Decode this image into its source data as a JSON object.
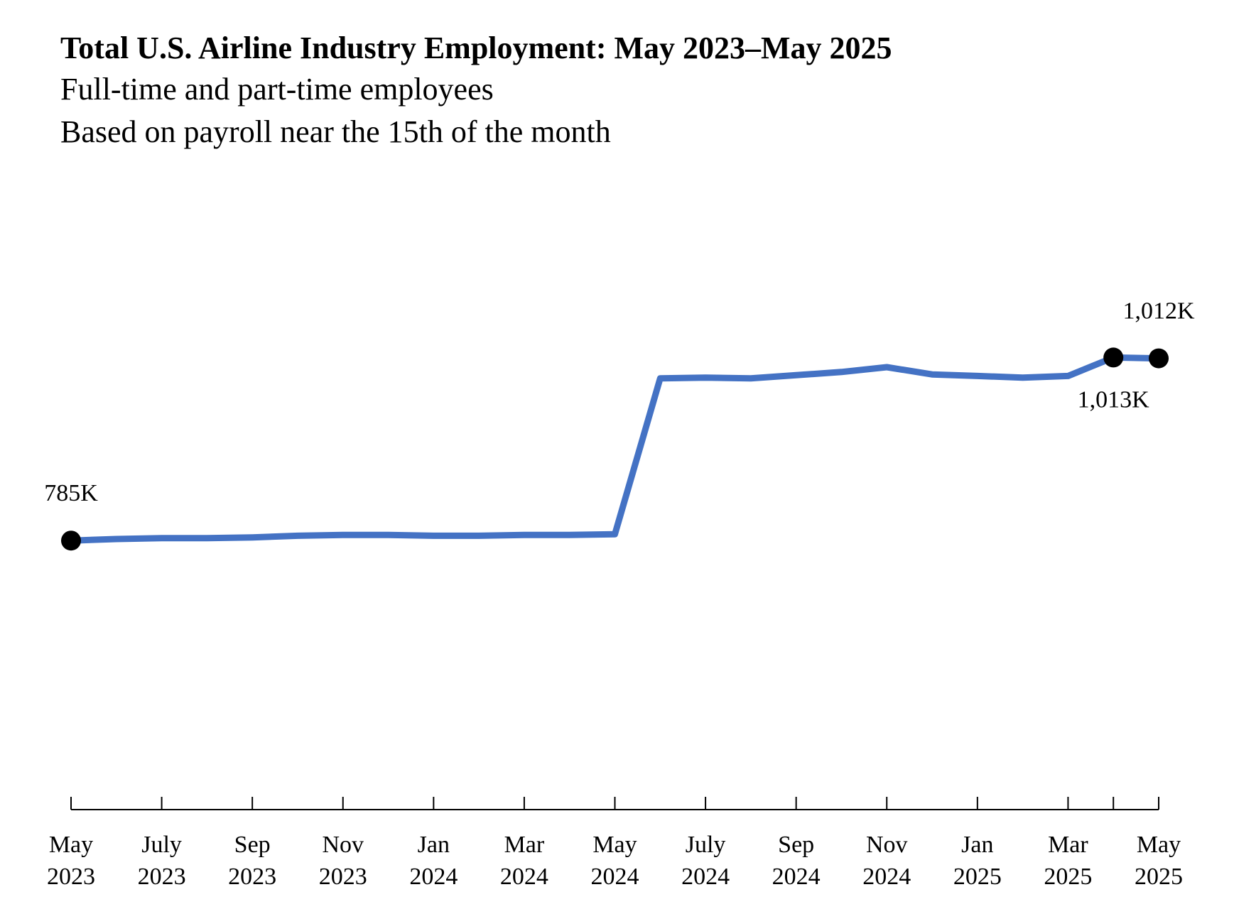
{
  "header": {
    "title": "Total U.S. Airline Industry Employment: May 2023–May 2025",
    "subtitle_1": "Full-time and part-time employees",
    "subtitle_2": "Based on payroll near the 15th of the month"
  },
  "chart_data": {
    "type": "line",
    "title": "Total U.S. Airline Industry Employment: May 2023–May 2025",
    "subtitle": [
      "Full-time and part-time employees",
      "Based on payroll near the 15th of the month"
    ],
    "xlabel": "",
    "ylabel": "",
    "x": [
      "May 2023",
      "Jun 2023",
      "Jul 2023",
      "Aug 2023",
      "Sep 2023",
      "Oct 2023",
      "Nov 2023",
      "Dec 2023",
      "Jan 2024",
      "Feb 2024",
      "Mar 2024",
      "Apr 2024",
      "May 2024",
      "Jun 2024",
      "Jul 2024",
      "Aug 2024",
      "Sep 2024",
      "Oct 2024",
      "Nov 2024",
      "Dec 2024",
      "Jan 2025",
      "Feb 2025",
      "Mar 2025",
      "Apr 2025",
      "May 2025"
    ],
    "x_tick_labels": [
      {
        "month": "May",
        "year": "2023"
      },
      {
        "month": "July",
        "year": "2023"
      },
      {
        "month": "Sep",
        "year": "2023"
      },
      {
        "month": "Nov",
        "year": "2023"
      },
      {
        "month": "Jan",
        "year": "2024"
      },
      {
        "month": "Mar",
        "year": "2024"
      },
      {
        "month": "May",
        "year": "2024"
      },
      {
        "month": "July",
        "year": "2024"
      },
      {
        "month": "Sep",
        "year": "2024"
      },
      {
        "month": "Nov",
        "year": "2024"
      },
      {
        "month": "Jan",
        "year": "2025"
      },
      {
        "month": "Mar",
        "year": "2025"
      },
      {
        "month": "May",
        "year": "2025"
      }
    ],
    "series": [
      {
        "values": [
          785,
          787,
          788,
          788,
          789,
          791,
          792,
          792,
          791,
          791,
          792,
          792,
          793,
          987,
          988,
          987,
          991,
          995,
          1001,
          992,
          990,
          988,
          990,
          1013,
          1012
        ],
        "color": "#4472C4"
      }
    ],
    "point_labels": [
      {
        "index": 0,
        "text": "785K",
        "position": "above"
      },
      {
        "index": 23,
        "text": "1,013K",
        "position": "below"
      },
      {
        "index": 24,
        "text": "1,012K",
        "position": "above"
      }
    ],
    "ylim": [
      450,
      1200
    ],
    "grid": false,
    "legend": "none",
    "y_axis_visible": false,
    "marker_color": "#000000"
  }
}
